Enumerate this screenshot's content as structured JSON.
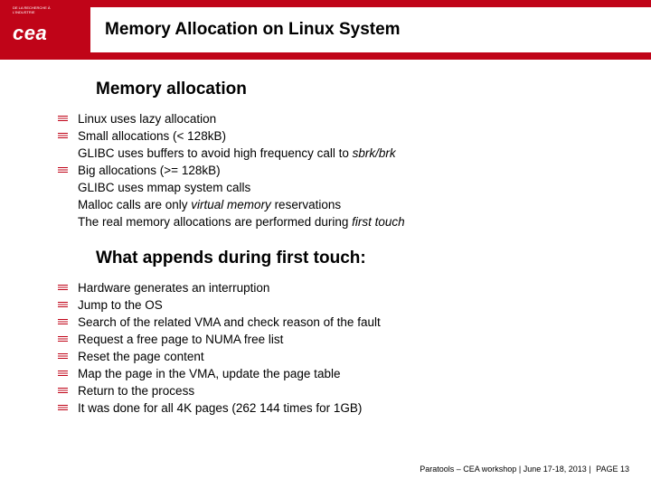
{
  "header": {
    "logo_text": "cea",
    "logo_sub": "DE LA RECHERCHE À L'INDUSTRIE",
    "title": "Memory Allocation on Linux System"
  },
  "section1": {
    "heading": "Memory allocation",
    "items": [
      {
        "text": "Linux uses lazy allocation",
        "bullet": true
      },
      {
        "text": "Small allocations (< 128kB)",
        "bullet": true
      },
      {
        "text_html": "GLIBC uses buffers to avoid high frequency call to <span class=\"italic\">sbrk/brk</span>",
        "bullet": false
      },
      {
        "text": "Big allocations (>= 128kB)",
        "bullet": true
      },
      {
        "text": "GLIBC uses mmap system calls",
        "bullet": false
      },
      {
        "text_html": "Malloc calls are only <span class=\"italic\">virtual memory</span> reservations",
        "bullet": false
      },
      {
        "text_html": "The real memory allocations are performed during <span class=\"italic\">first touch</span>",
        "bullet": false
      }
    ]
  },
  "section2": {
    "heading": "What appends during first touch:",
    "items": [
      {
        "text": "Hardware generates an interruption",
        "bullet": true
      },
      {
        "text": "Jump to the OS",
        "bullet": true
      },
      {
        "text": "Search of the related VMA and check reason of the fault",
        "bullet": true
      },
      {
        "text": "Request a free page to NUMA free list",
        "bullet": true
      },
      {
        "text": "Reset the page content",
        "bullet": true
      },
      {
        "text": "Map the page in the VMA, update the page table",
        "bullet": true
      },
      {
        "text": "Return to the process",
        "bullet": true
      },
      {
        "text": "It was done for all 4K pages (262 144 times for 1GB)",
        "bullet": true
      }
    ]
  },
  "footer": {
    "left": "Paratools – CEA workshop",
    "sep": "|",
    "date": "June 17-18, 2013",
    "pagelabel": "PAGE",
    "pagenum": "13"
  },
  "colors": {
    "brand": "#c00418",
    "text": "#000000",
    "bg": "#ffffff"
  }
}
